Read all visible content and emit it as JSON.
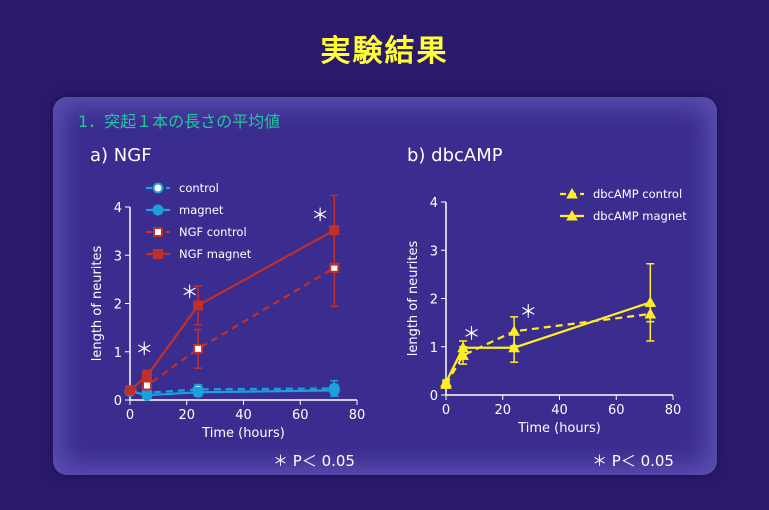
{
  "slide": {
    "title": "実験結果",
    "section": "1．突起１本の長さの平均値",
    "p_note": "＊ P＜ 0.05"
  },
  "colors": {
    "background": "#2b1a6b",
    "title": "#ffff33",
    "section": "#22c7a0",
    "blue": "#1aa0dd",
    "red": "#c0302a",
    "yellow": "#ffee22",
    "marker": "#ffffff"
  },
  "chart_data": [
    {
      "type": "line",
      "panel_label": "a) NGF",
      "xlabel": "Time (hours)",
      "ylabel": "length of neurites",
      "xlim": [
        0,
        80
      ],
      "ylim": [
        0,
        4
      ],
      "xticks": [
        0,
        20,
        40,
        60,
        80
      ],
      "yticks": [
        0,
        1,
        2,
        3,
        4
      ],
      "legend_position": "top-left",
      "series": [
        {
          "name": "control",
          "style": "dashed",
          "marker": "circle-open",
          "color": "#1aa0dd",
          "x": [
            0,
            6,
            24,
            72
          ],
          "y": [
            0.18,
            0.15,
            0.22,
            0.24
          ],
          "err": [
            0.02,
            0.08,
            0.1,
            0.16
          ]
        },
        {
          "name": "magnet",
          "style": "solid",
          "marker": "circle",
          "color": "#1aa0dd",
          "x": [
            0,
            6,
            24,
            72
          ],
          "y": [
            0.18,
            0.1,
            0.16,
            0.2
          ],
          "err": [
            0.02,
            0.05,
            0.08,
            0.12
          ]
        },
        {
          "name": "NGF control",
          "style": "dashed",
          "marker": "square-open",
          "color": "#c0302a",
          "x": [
            0,
            6,
            24,
            72
          ],
          "y": [
            0.2,
            0.3,
            1.06,
            2.74
          ],
          "err": [
            0.02,
            0.08,
            0.4,
            0.8
          ]
        },
        {
          "name": "NGF magnet",
          "style": "solid",
          "marker": "square",
          "color": "#c0302a",
          "x": [
            0,
            6,
            24,
            72
          ],
          "y": [
            0.2,
            0.5,
            1.96,
            3.52
          ],
          "err": [
            0.02,
            0.12,
            0.4,
            0.72
          ]
        }
      ],
      "annotations": [
        {
          "text": "＊",
          "x": 5,
          "y": 0.92
        },
        {
          "text": "＊",
          "x": 21,
          "y": 2.1
        },
        {
          "text": "＊",
          "x": 67,
          "y": 3.7
        }
      ]
    },
    {
      "type": "line",
      "panel_label": "b) dbcAMP",
      "xlabel": "Time (hours)",
      "ylabel": "length of neurites",
      "xlim": [
        0,
        80
      ],
      "ylim": [
        0,
        4
      ],
      "xticks": [
        0,
        20,
        40,
        60,
        80
      ],
      "yticks": [
        0,
        1,
        2,
        3,
        4
      ],
      "legend_position": "top-right",
      "series": [
        {
          "name": "dbcAMP control",
          "style": "dashed",
          "marker": "triangle",
          "color": "#ffee22",
          "x": [
            0,
            6,
            24,
            72
          ],
          "y": [
            0.22,
            0.82,
            1.32,
            1.68
          ],
          "err": [
            0.05,
            0.18,
            0.3,
            0.16
          ]
        },
        {
          "name": "dbcAMP magnet",
          "style": "solid",
          "marker": "triangle",
          "color": "#ffee22",
          "x": [
            0,
            6,
            24,
            72
          ],
          "y": [
            0.26,
            0.98,
            0.98,
            1.92
          ],
          "err": [
            0.05,
            0.14,
            0.3,
            0.8
          ]
        }
      ],
      "annotations": [
        {
          "text": "＊",
          "x": 9,
          "y": 1.14
        },
        {
          "text": "＊",
          "x": 29,
          "y": 1.6
        }
      ]
    }
  ]
}
